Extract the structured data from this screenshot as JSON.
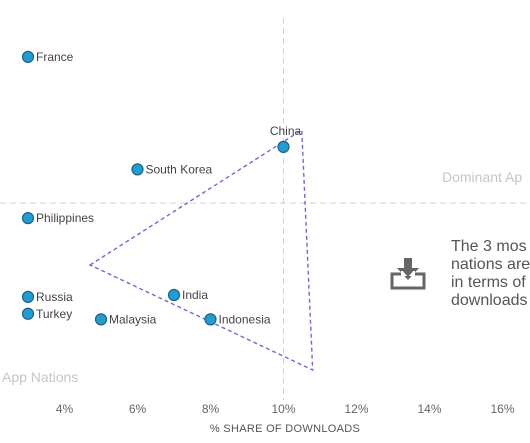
{
  "chart_data": {
    "type": "scatter",
    "xlabel": "% SHARE OF DOWNLOADS",
    "xlim": [
      3,
      16.5
    ],
    "ylim": [
      0,
      10
    ],
    "x_ticks": [
      "4%",
      "6%",
      "8%",
      "10%",
      "12%",
      "14%",
      "16%"
    ],
    "x_tick_values": [
      4,
      6,
      8,
      10,
      12,
      14,
      16
    ],
    "points": [
      {
        "label": "France",
        "x": 3.0,
        "y": 9.15
      },
      {
        "label": "China",
        "x": 10.0,
        "y": 6.75
      },
      {
        "label": "South Korea",
        "x": 6.0,
        "y": 6.15
      },
      {
        "label": "Philippines",
        "x": 3.0,
        "y": 4.85
      },
      {
        "label": "Russia",
        "x": 3.0,
        "y": 2.75
      },
      {
        "label": "Turkey",
        "x": 3.0,
        "y": 2.3
      },
      {
        "label": "Malaysia",
        "x": 5.0,
        "y": 2.15
      },
      {
        "label": "India",
        "x": 7.0,
        "y": 2.8
      },
      {
        "label": "Indonesia",
        "x": 8.0,
        "y": 2.15
      }
    ],
    "reference_lines": {
      "x": 10.0,
      "y": 5.25
    },
    "quadrant_labels": {
      "top_right": "Dominant Ap",
      "bottom_left": "App Nations"
    },
    "annotation_lines": [
      "The 3 mos",
      "nations are",
      "in terms of",
      "downloads"
    ],
    "triangle": [
      [
        4.7,
        3.6
      ],
      [
        10.5,
        7.2
      ],
      [
        10.8,
        0.8
      ]
    ],
    "grid": false
  },
  "colors": {
    "point": "#1a9fd9",
    "triangle": "#6b6bd6",
    "reference_line": "#d4d4d4",
    "icon": "#666666"
  },
  "icons": [
    "download-icon"
  ]
}
